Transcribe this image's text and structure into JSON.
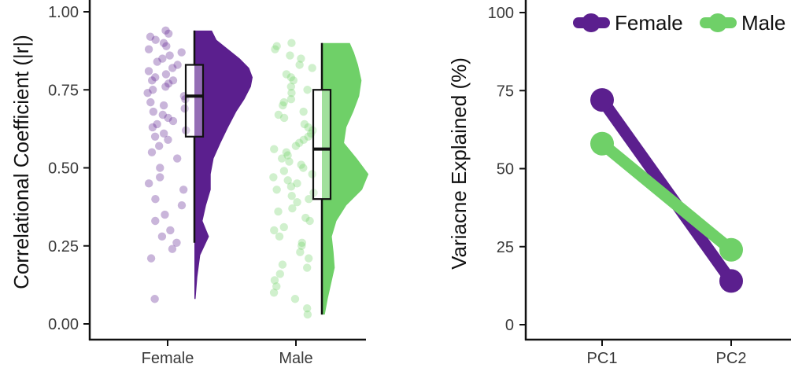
{
  "colors": {
    "female": "#5b1f8e",
    "male": "#6fd068",
    "axis": "#111111",
    "tick_text": "#3a3a3a"
  },
  "chart_data": [
    {
      "type": "raincloud",
      "title": "",
      "ylabel": "Correlational Coefficient (|r|)",
      "xlabel": "",
      "ylim": [
        0,
        1
      ],
      "yticks": [
        0,
        0.25,
        0.5,
        0.75,
        1
      ],
      "ytick_labels": [
        "0.00",
        "0.25",
        "0.50",
        "0.75",
        "1.00"
      ],
      "categories": [
        "Female",
        "Male"
      ],
      "box": [
        {
          "name": "Female",
          "whisker_low": 0.26,
          "q1": 0.6,
          "median": 0.73,
          "q3": 0.83,
          "whisker_high": 0.94
        },
        {
          "name": "Male",
          "whisker_low": 0.03,
          "q1": 0.4,
          "median": 0.56,
          "q3": 0.75,
          "whisker_high": 0.9
        }
      ],
      "density": [
        {
          "name": "Female",
          "y": [
            0.08,
            0.15,
            0.22,
            0.28,
            0.33,
            0.38,
            0.43,
            0.48,
            0.53,
            0.58,
            0.63,
            0.68,
            0.72,
            0.76,
            0.79,
            0.82,
            0.85,
            0.88,
            0.91,
            0.94
          ],
          "d": [
            0.02,
            0.05,
            0.1,
            0.25,
            0.14,
            0.2,
            0.28,
            0.28,
            0.33,
            0.45,
            0.58,
            0.72,
            0.86,
            0.97,
            1.0,
            0.94,
            0.78,
            0.58,
            0.38,
            0.3
          ]
        },
        {
          "name": "Male",
          "y": [
            0.03,
            0.08,
            0.13,
            0.18,
            0.23,
            0.28,
            0.33,
            0.38,
            0.43,
            0.48,
            0.53,
            0.58,
            0.63,
            0.68,
            0.73,
            0.78,
            0.83,
            0.87,
            0.9
          ],
          "d": [
            0.05,
            0.1,
            0.16,
            0.22,
            0.2,
            0.17,
            0.25,
            0.42,
            0.69,
            0.8,
            0.6,
            0.38,
            0.42,
            0.54,
            0.64,
            0.68,
            0.62,
            0.55,
            0.48
          ]
        }
      ],
      "points": [
        {
          "name": "Female",
          "y": [
            0.94,
            0.93,
            0.92,
            0.91,
            0.9,
            0.89,
            0.88,
            0.87,
            0.86,
            0.85,
            0.84,
            0.83,
            0.82,
            0.81,
            0.8,
            0.79,
            0.78,
            0.78,
            0.77,
            0.76,
            0.75,
            0.74,
            0.73,
            0.72,
            0.71,
            0.7,
            0.69,
            0.68,
            0.67,
            0.66,
            0.65,
            0.64,
            0.63,
            0.62,
            0.61,
            0.6,
            0.59,
            0.57,
            0.55,
            0.53,
            0.5,
            0.47,
            0.45,
            0.43,
            0.4,
            0.38,
            0.35,
            0.33,
            0.3,
            0.28,
            0.26,
            0.24,
            0.21,
            0.08
          ]
        },
        {
          "name": "Male",
          "y": [
            0.9,
            0.89,
            0.88,
            0.86,
            0.85,
            0.83,
            0.82,
            0.8,
            0.79,
            0.78,
            0.76,
            0.75,
            0.74,
            0.72,
            0.71,
            0.7,
            0.68,
            0.67,
            0.66,
            0.64,
            0.63,
            0.62,
            0.61,
            0.6,
            0.59,
            0.58,
            0.57,
            0.56,
            0.55,
            0.54,
            0.53,
            0.52,
            0.51,
            0.5,
            0.49,
            0.48,
            0.47,
            0.46,
            0.45,
            0.44,
            0.43,
            0.42,
            0.41,
            0.4,
            0.39,
            0.37,
            0.36,
            0.34,
            0.33,
            0.31,
            0.3,
            0.28,
            0.26,
            0.25,
            0.23,
            0.21,
            0.19,
            0.18,
            0.16,
            0.14,
            0.12,
            0.1,
            0.08,
            0.05,
            0.03
          ]
        }
      ]
    },
    {
      "type": "line",
      "title": "",
      "ylabel": "Variacne Explained (%)",
      "xlabel": "",
      "categories": [
        "PC1",
        "PC2"
      ],
      "ylim": [
        0,
        100
      ],
      "yticks": [
        0,
        25,
        50,
        75,
        100
      ],
      "ytick_labels": [
        "0",
        "25",
        "50",
        "75",
        "100"
      ],
      "series": [
        {
          "name": "Female",
          "values": [
            72,
            14
          ]
        },
        {
          "name": "Male",
          "values": [
            58,
            24
          ]
        }
      ],
      "legend": {
        "position": "top-right",
        "entries": [
          "Female",
          "Male"
        ]
      }
    }
  ]
}
